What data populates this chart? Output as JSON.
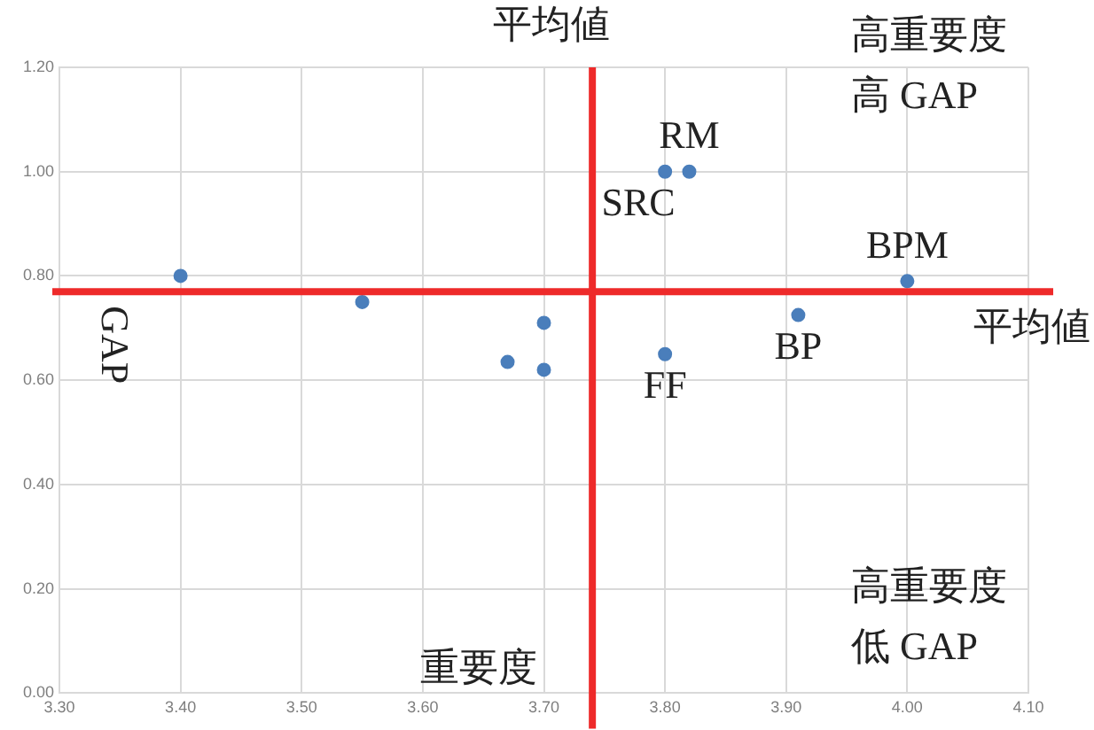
{
  "chart_data": {
    "type": "scatter",
    "xlabel": "重要度",
    "ylabel": "GAP",
    "x": [
      3.4,
      3.55,
      3.67,
      3.7,
      3.7,
      3.8,
      3.82,
      3.8,
      3.91,
      4.0
    ],
    "series": [
      {
        "color": "#4a7ebb",
        "values": [
          0.8,
          0.75,
          0.635,
          0.71,
          0.62,
          1.0,
          1.0,
          0.65,
          0.725,
          0.79
        ]
      }
    ],
    "xlim": [
      3.3,
      4.1
    ],
    "ylim": [
      0,
      1.2
    ],
    "xticks": [
      {
        "value": 3.3,
        "label": "3.30"
      },
      {
        "value": 3.4,
        "label": "3.40"
      },
      {
        "value": 3.5,
        "label": "3.50"
      },
      {
        "value": 3.6,
        "label": "3.60"
      },
      {
        "value": 3.7,
        "label": "3.70"
      },
      {
        "value": 3.8,
        "label": "3.80"
      },
      {
        "value": 3.9,
        "label": "3.90"
      },
      {
        "value": 4.0,
        "label": "4.00"
      },
      {
        "value": 4.1,
        "label": "4.10"
      }
    ],
    "yticks": [
      {
        "value": 0,
        "label": "0.00"
      },
      {
        "value": 0.2,
        "label": "0.20"
      },
      {
        "value": 0.4,
        "label": "0.40"
      },
      {
        "value": 0.6,
        "label": "0.60"
      },
      {
        "value": 0.8,
        "label": "0.80"
      },
      {
        "value": 1.0,
        "label": "1.00"
      },
      {
        "value": 1.2,
        "label": "1.20"
      }
    ],
    "ref_lines": [
      {
        "axis": "x",
        "value": 3.74,
        "label": "平均値",
        "color": "#ee2a2a"
      },
      {
        "axis": "y",
        "value": 0.77,
        "label": "平均値",
        "color": "#ee2a2a"
      }
    ],
    "annotations": [
      {
        "text": "RM",
        "x": 3.82,
        "y": 1.0
      },
      {
        "text": "SRC",
        "x": 3.8,
        "y": 1.0
      },
      {
        "text": "BPM",
        "x": 4.0,
        "y": 0.79
      },
      {
        "text": "BP",
        "x": 3.91,
        "y": 0.725
      },
      {
        "text": "FF",
        "x": 3.8,
        "y": 0.65
      },
      "高重要度",
      "高 GAP",
      "高重要度",
      "低 GAP"
    ],
    "grid": true,
    "legend": false,
    "marker": "circle"
  }
}
